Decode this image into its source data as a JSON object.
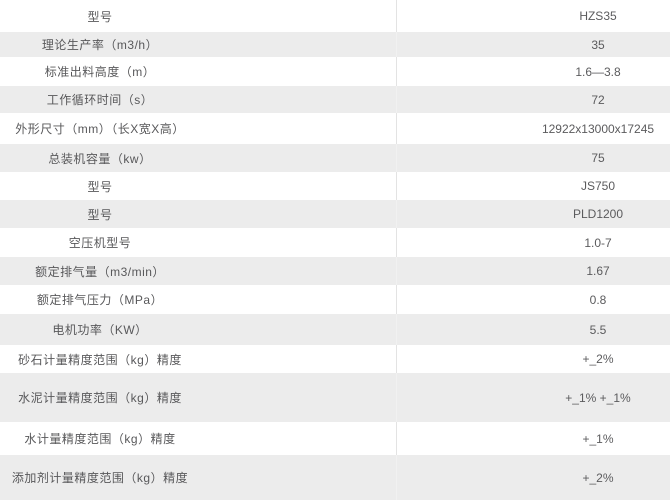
{
  "table": {
    "rows": [
      {
        "label": "型号",
        "value": "HZS35"
      },
      {
        "label": "理论生产率（m3/h）",
        "value": "35"
      },
      {
        "label": "标准出料高度（m）",
        "value": "1.6—3.8"
      },
      {
        "label": "工作循环时间（s）",
        "value": "72"
      },
      {
        "label": "外形尺寸（mm）（长X宽X高）",
        "value": "12922x13000x17245"
      },
      {
        "label": "总装机容量（kw）",
        "value": "75"
      },
      {
        "label": "型号",
        "value": "JS750"
      },
      {
        "label": "型号",
        "value": "PLD1200"
      },
      {
        "label": "空压机型号",
        "value": "1.0-7"
      },
      {
        "label": "额定排气量（m3/min）",
        "value": "1.67"
      },
      {
        "label": "额定排气压力（MPa）",
        "value": "0.8"
      },
      {
        "label": "电机功率（KW）",
        "value": "5.5"
      },
      {
        "label": "砂石计量精度范围（kg）精度",
        "value": "+_2%"
      },
      {
        "label": "水泥计量精度范围（kg）精度",
        "value": "+_1% +_1%"
      },
      {
        "label": "水计量精度范围（kg）精度",
        "value": "+_1%"
      },
      {
        "label": "添加剂计量精度范围（kg）精度",
        "value": "+_2%"
      }
    ]
  },
  "colors": {
    "row_alt_bg": "#ececec",
    "divider": "#e3e3e3",
    "label_text": "#58585a",
    "value_text": "#5b5b5d"
  }
}
